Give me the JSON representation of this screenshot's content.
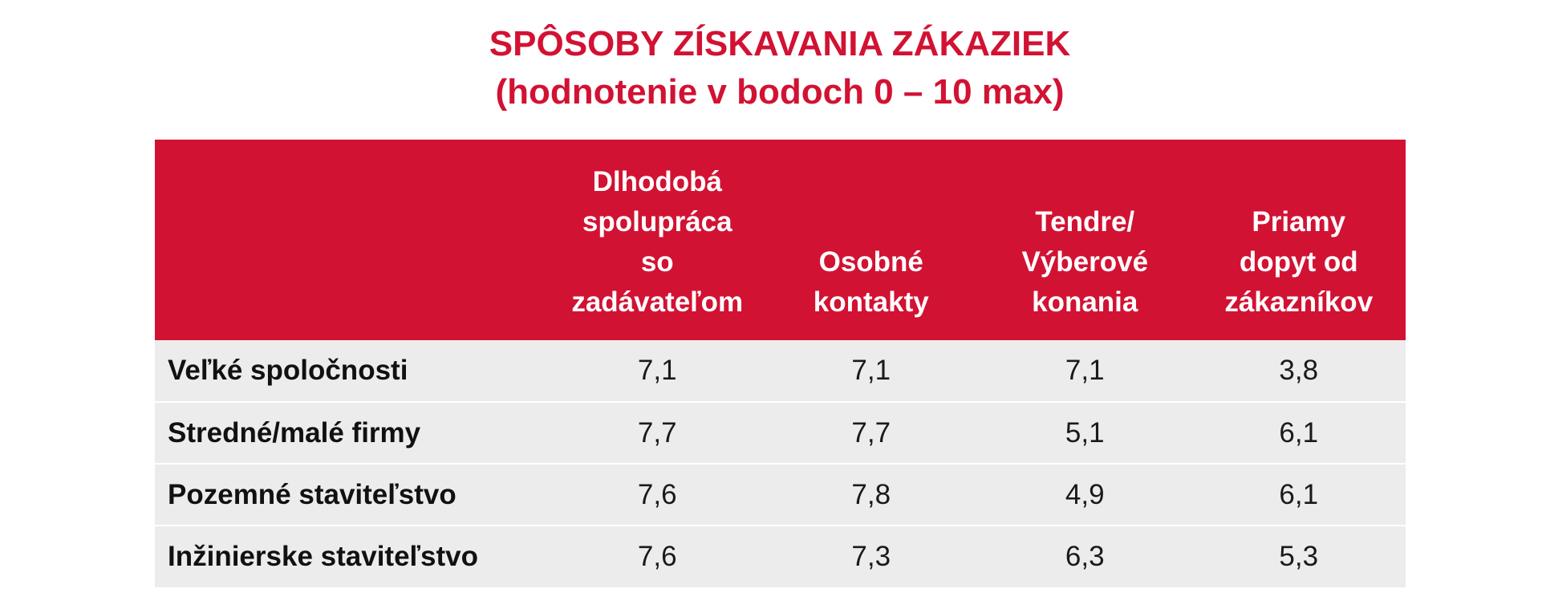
{
  "chart_data": {
    "type": "table",
    "title": "SPÔSOBY ZÍSKAVANIA ZÁKAZIEK",
    "subtitle": "(hodnotenie v bodoch 0 – 10 max)",
    "columns": [
      [
        "Dlhodobá",
        "spolupráca",
        "so",
        "zadávateľom"
      ],
      [
        "Osobné",
        "kontakty"
      ],
      [
        "Tendre/",
        "Výberové",
        "konania"
      ],
      [
        "Priamy",
        "dopyt od",
        "zákazníkov"
      ]
    ],
    "rows": [
      {
        "label": "Veľké spoločnosti",
        "values": [
          "7,1",
          "7,1",
          "7,1",
          "3,8"
        ]
      },
      {
        "label": "Stredné/malé firmy",
        "values": [
          "7,7",
          "7,7",
          "5,1",
          "6,1"
        ]
      },
      {
        "label": "Pozemné staviteľstvo",
        "values": [
          "7,6",
          "7,8",
          "4,9",
          "6,1"
        ]
      },
      {
        "label": "Inžinierske staviteľstvo",
        "values": [
          "7,6",
          "7,3",
          "6,3",
          "5,3"
        ]
      }
    ]
  },
  "colors": {
    "accent": "#d21233",
    "row_background": "#ececec"
  }
}
